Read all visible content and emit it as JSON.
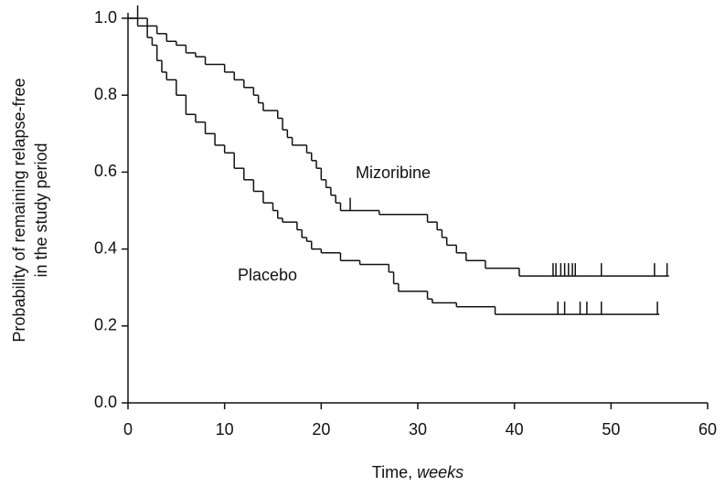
{
  "chart_data": {
    "type": "step",
    "ylabel": [
      "Probability of remaining relapse-free",
      "in the study period"
    ],
    "xlabel": "Time,",
    "xlabel_unit": "weeks",
    "xlim": [
      0,
      60
    ],
    "xticks": [
      0,
      10,
      20,
      30,
      40,
      50,
      60
    ],
    "ylim": [
      0,
      1.0
    ],
    "yticks": [
      {
        "value": 0,
        "label": "0.0"
      },
      0.2,
      0.4,
      0.6,
      0.8,
      {
        "value": 1,
        "label": "1.0"
      }
    ],
    "series": [
      {
        "name": "Mizoribine",
        "color": "#111111",
        "x": [
          0,
          2,
          3,
          4,
          5,
          6,
          7,
          8,
          10,
          11,
          12,
          13,
          13.5,
          14,
          15.5,
          16,
          16.5,
          17,
          18.5,
          19,
          19.5,
          20,
          20.5,
          21,
          21.5,
          22,
          26,
          31,
          32,
          32.5,
          33,
          34,
          35,
          37,
          40.5,
          56
        ],
        "values": [
          1.0,
          0.98,
          0.96,
          0.94,
          0.93,
          0.91,
          0.9,
          0.88,
          0.86,
          0.84,
          0.82,
          0.8,
          0.78,
          0.76,
          0.74,
          0.71,
          0.69,
          0.67,
          0.65,
          0.63,
          0.61,
          0.58,
          0.56,
          0.54,
          0.52,
          0.5,
          0.49,
          0.47,
          0.45,
          0.43,
          0.41,
          0.39,
          0.37,
          0.35,
          0.33,
          0.33
        ],
        "censor_x": [
          1,
          23,
          44,
          44.3,
          44.8,
          45.2,
          45.6,
          46,
          46.3,
          49,
          54.5,
          55.8
        ],
        "censor_values": [
          1.0,
          0.5,
          0.33,
          0.33,
          0.33,
          0.33,
          0.33,
          0.33,
          0.33,
          0.33,
          0.33,
          0.33
        ]
      },
      {
        "name": "Placebo",
        "color": "#111111",
        "x": [
          0,
          1,
          2,
          2.5,
          3,
          3.5,
          4,
          5,
          6,
          7,
          8,
          9,
          10,
          11,
          12,
          13,
          14,
          15,
          15.5,
          16,
          17.5,
          18,
          18.5,
          19,
          20,
          22,
          24,
          27,
          27.5,
          28,
          31,
          31.5,
          34,
          38,
          55
        ],
        "values": [
          1.0,
          0.98,
          0.95,
          0.93,
          0.89,
          0.86,
          0.84,
          0.8,
          0.75,
          0.73,
          0.7,
          0.67,
          0.65,
          0.61,
          0.58,
          0.55,
          0.52,
          0.5,
          0.48,
          0.47,
          0.45,
          0.43,
          0.42,
          0.4,
          0.39,
          0.37,
          0.36,
          0.34,
          0.31,
          0.29,
          0.27,
          0.26,
          0.25,
          0.23,
          0.23
        ],
        "censor_x": [
          44.5,
          45.2,
          46.8,
          47.5,
          49,
          54.8
        ],
        "censor_values": [
          0.23,
          0.23,
          0.23,
          0.23,
          0.23,
          0.23
        ]
      }
    ]
  }
}
